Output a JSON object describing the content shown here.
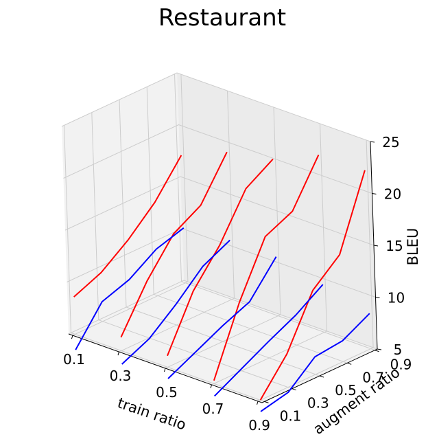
{
  "chart_data": {
    "type": "line",
    "projection": "3d",
    "title": "Restaurant",
    "xlabel": "train ratio",
    "ylabel": "augment ratio",
    "zlabel": "BLEU",
    "x_ticks": [
      0.1,
      0.3,
      0.5,
      0.7,
      0.9
    ],
    "y_ticks": [
      0.1,
      0.3,
      0.5,
      0.7,
      0.9
    ],
    "z_ticks": [
      5,
      10,
      15,
      20,
      25
    ],
    "zlim": [
      5,
      25
    ],
    "grid": true,
    "series": [
      {
        "color": "#ff0000",
        "x_fixed": 0.1,
        "y": [
          0.1,
          0.3,
          0.5,
          0.7,
          0.9
        ],
        "z": [
          8.6,
          9.7,
          11.6,
          14.0,
          17.3
        ]
      },
      {
        "color": "#ff0000",
        "x_fixed": 0.3,
        "y": [
          0.1,
          0.3,
          0.5,
          0.7,
          0.9
        ],
        "z": [
          6.3,
          10.5,
          13.8,
          15.3,
          19.2
        ]
      },
      {
        "color": "#ff0000",
        "x_fixed": 0.5,
        "y": [
          0.1,
          0.3,
          0.5,
          0.7,
          0.9
        ],
        "z": [
          6.1,
          11.1,
          14.3,
          18.5,
          20.1
        ]
      },
      {
        "color": "#ff0000",
        "x_fixed": 0.7,
        "y": [
          0.1,
          0.3,
          0.5,
          0.7,
          0.9
        ],
        "z": [
          5.3,
          11.6,
          16.7,
          17.9,
          22.1
        ]
      },
      {
        "color": "#ff0000",
        "x_fixed": 0.9,
        "y": [
          0.1,
          0.3,
          0.5,
          0.7,
          0.9
        ],
        "z": [
          5.0,
          8.2,
          13.1,
          15.3,
          22.2
        ]
      },
      {
        "color": "#0000ff",
        "x_fixed": 0.1,
        "y": [
          0.1,
          0.3,
          0.5,
          0.7,
          0.9
        ],
        "z": [
          3.5,
          6.9,
          7.8,
          9.5,
          10.3
        ]
      },
      {
        "color": "#0000ff",
        "x_fixed": 0.3,
        "y": [
          0.1,
          0.3,
          0.5,
          0.7,
          0.9
        ],
        "z": [
          3.7,
          4.9,
          7.0,
          9.4,
          10.7
        ]
      },
      {
        "color": "#0000ff",
        "x_fixed": 0.5,
        "y": [
          0.1,
          0.3,
          0.5,
          0.7,
          0.9
        ],
        "z": [
          3.9,
          5.2,
          6.5,
          7.6,
          10.7
        ]
      },
      {
        "color": "#0000ff",
        "x_fixed": 0.7,
        "y": [
          0.1,
          0.3,
          0.5,
          0.7,
          0.9
        ],
        "z": [
          3.8,
          5.2,
          6.6,
          7.9,
          9.6
        ]
      },
      {
        "color": "#0000ff",
        "x_fixed": 0.9,
        "y": [
          0.1,
          0.3,
          0.5,
          0.7,
          0.9
        ],
        "z": [
          3.9,
          4.5,
          6.7,
          7.0,
          8.4
        ]
      }
    ]
  }
}
